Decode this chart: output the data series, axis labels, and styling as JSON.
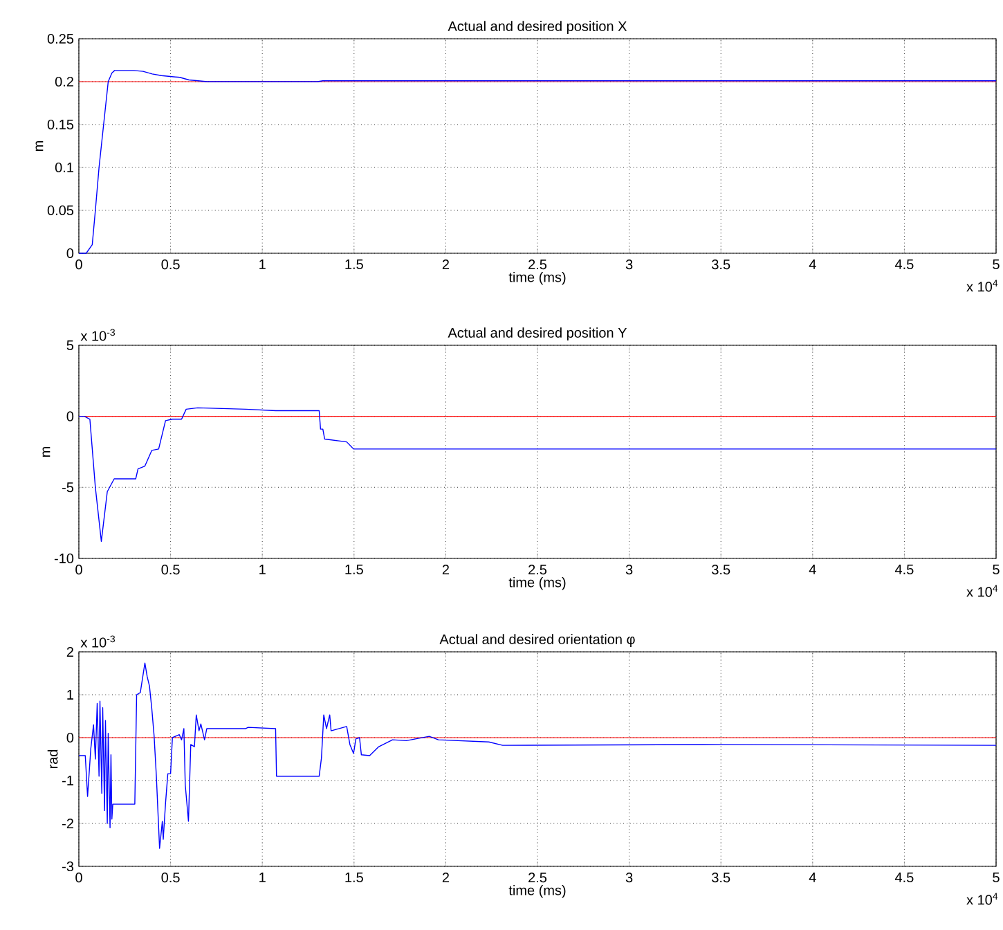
{
  "chart_data": [
    {
      "type": "line",
      "title": "Actual and desired position X",
      "xlabel": "time (ms)",
      "ylabel": "m",
      "series": [
        {
          "color": "#0000ff",
          "x": [
            0,
            0.04,
            0.073,
            0.09,
            0.11,
            0.135,
            0.16,
            0.18,
            0.195,
            0.25,
            0.3,
            0.35,
            0.4,
            0.45,
            0.5,
            0.55,
            0.6,
            0.65,
            0.7,
            1.3,
            1.33,
            5
          ],
          "values": [
            0,
            0,
            0.01,
            0.05,
            0.1,
            0.15,
            0.2,
            0.21,
            0.213,
            0.213,
            0.213,
            0.212,
            0.209,
            0.207,
            0.206,
            0.205,
            0.202,
            0.201,
            0.2,
            0.2,
            0.201,
            0.201
          ]
        }
      ],
      "ref_lines": [
        {
          "axis": "y",
          "value": 0.2,
          "color": "#ff0000"
        }
      ],
      "xlim": [
        0,
        5
      ],
      "xticks": [
        0,
        0.5,
        1,
        1.5,
        2,
        2.5,
        3,
        3.5,
        4,
        4.5,
        5
      ],
      "ylim": [
        0,
        0.25
      ],
      "yticks": [
        0,
        0.05,
        0.1,
        0.15,
        0.2,
        0.25
      ],
      "grid": true,
      "annotations": [
        "x 10$^{4}$"
      ]
    },
    {
      "type": "line",
      "title": "Actual and desired position Y",
      "xlabel": "time (ms)",
      "ylabel": "m",
      "series": [
        {
          "color": "#0000ff",
          "x": [
            0,
            0.03,
            0.06,
            0.09,
            0.1225,
            0.155,
            0.1925,
            0.31,
            0.3225,
            0.36,
            0.3975,
            0.435,
            0.4725,
            0.51,
            0.56,
            0.585,
            0.6475,
            0.91,
            1.0725,
            1.31,
            1.3175,
            1.33,
            1.34,
            1.46,
            1.4975,
            2.535,
            5
          ],
          "values": [
            0,
            0,
            -0.2,
            -5,
            -8.8,
            -5.3,
            -4.4,
            -4.4,
            -3.7,
            -3.5,
            -2.4,
            -2.3,
            -0.3,
            -0.2,
            -0.2,
            0.5,
            0.6,
            0.5,
            0.4,
            0.4,
            -0.9,
            -0.9,
            -1.6,
            -1.8,
            -2.3,
            -2.3,
            -2.3
          ]
        }
      ],
      "ref_lines": [
        {
          "axis": "y",
          "value": 0,
          "color": "#ff0000"
        }
      ],
      "xlim": [
        0,
        5
      ],
      "xticks": [
        0,
        0.5,
        1,
        1.5,
        2,
        2.5,
        3,
        3.5,
        4,
        4.5,
        5
      ],
      "ylim": [
        -10,
        5
      ],
      "yticks": [
        -10,
        -5,
        0,
        5
      ],
      "grid": true,
      "annotations": [
        "x 10$^{-3}$",
        "x 10$^{4}$"
      ]
    },
    {
      "type": "line",
      "title": "Actual and desired orientation φ",
      "xlabel": "time (ms)",
      "ylabel": "rad",
      "series": [
        {
          "color": "#0000ff",
          "x": [
            0,
            0.035,
            0.0475,
            0.065,
            0.08,
            0.09,
            0.1,
            0.11,
            0.115,
            0.125,
            0.13,
            0.14,
            0.145,
            0.155,
            0.16,
            0.17,
            0.175,
            0.18,
            0.185,
            0.305,
            0.315,
            0.335,
            0.36,
            0.3725,
            0.385,
            0.3975,
            0.41,
            0.4225,
            0.44,
            0.455,
            0.46,
            0.4725,
            0.485,
            0.5,
            0.51,
            0.5475,
            0.56,
            0.5725,
            0.58,
            0.5975,
            0.61,
            0.63,
            0.64,
            0.655,
            0.665,
            0.685,
            0.6975,
            0.91,
            0.9225,
            1.0725,
            1.0775,
            1.31,
            1.3225,
            1.335,
            1.35,
            1.3675,
            1.375,
            1.46,
            1.4775,
            1.4975,
            1.51,
            1.53,
            1.54,
            1.585,
            1.635,
            1.71,
            1.785,
            1.91,
            1.96,
            2.235,
            2.31,
            3.5,
            5
          ],
          "values": [
            -0.42,
            -0.42,
            -1.37,
            -0.26,
            0.3,
            -0.5,
            0.8,
            -0.9,
            0.85,
            -1.3,
            0.7,
            -1.7,
            0.4,
            -2,
            0.1,
            -2.1,
            -0.4,
            -1.9,
            -1.55,
            -1.55,
            1,
            1.05,
            1.74,
            1.42,
            1.2,
            0.68,
            0.05,
            -0.9,
            -2.58,
            -1.95,
            -2.37,
            -1.53,
            -0.84,
            -0.84,
            0,
            0.07,
            -0.05,
            0.21,
            -1.1,
            -1.95,
            -0.16,
            -0.21,
            0.53,
            0.16,
            0.32,
            -0.05,
            0.21,
            0.21,
            0.24,
            0.21,
            -0.9,
            -0.9,
            -0.47,
            0.53,
            0.21,
            0.53,
            0.16,
            0.26,
            -0.16,
            -0.37,
            -0.03,
            0,
            -0.4,
            -0.42,
            -0.21,
            -0.05,
            -0.07,
            0.03,
            -0.05,
            -0.1,
            -0.18,
            -0.16,
            -0.18
          ]
        }
      ],
      "ref_lines": [
        {
          "axis": "y",
          "value": 0,
          "color": "#ff0000"
        }
      ],
      "xlim": [
        0,
        5
      ],
      "xticks": [
        0,
        0.5,
        1,
        1.5,
        2,
        2.5,
        3,
        3.5,
        4,
        4.5,
        5
      ],
      "ylim": [
        -3,
        2
      ],
      "yticks": [
        -3,
        -2,
        -1,
        0,
        1,
        2
      ],
      "grid": true,
      "annotations": [
        "x 10$^{-3}$",
        "x 10$^{4}$"
      ]
    }
  ]
}
